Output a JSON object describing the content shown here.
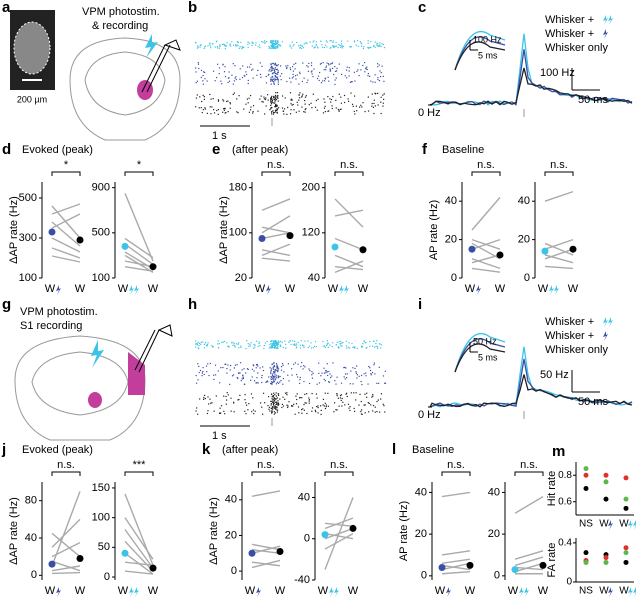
{
  "panels": {
    "a": {
      "label": "a",
      "title_lines": [
        "VPM photostim.",
        "& recording"
      ],
      "scale": "200 µm"
    },
    "b": {
      "label": "b",
      "scale": "1 s"
    },
    "c": {
      "label": "c",
      "legend": [
        "Whisker +",
        "Whisker +",
        "Whisker only"
      ],
      "inset_scale": [
        "100 Hz",
        "5 ms"
      ],
      "scale": [
        "100 Hz",
        "50 ms"
      ],
      "zero": "0 Hz"
    },
    "g": {
      "label": "g",
      "title_lines": [
        "VPM photostim.",
        "S1 recording"
      ]
    },
    "h": {
      "label": "h",
      "scale": "1 s"
    },
    "i": {
      "label": "i",
      "legend": [
        "Whisker +",
        "Whisker +",
        "Whisker only"
      ],
      "inset_scale": [
        "50 Hz",
        "5 ms"
      ],
      "scale": [
        "50 Hz",
        "50 ms"
      ],
      "zero": "0 Hz"
    }
  },
  "x_label": "W",
  "paired": [
    {
      "label": "d",
      "title": "Evoked (peak)",
      "ylabel": "ΔAP rate (Hz)",
      "plots": [
        {
          "sig": "*",
          "ylim": [
            100,
            580
          ],
          "yticks": [
            100,
            300,
            500
          ],
          "color": "#3a4ea6",
          "means": [
            330,
            290
          ],
          "cells": [
            [
              420,
              470
            ],
            [
              380,
              260
            ],
            [
              300,
              230
            ],
            [
              460,
              300
            ],
            [
              250,
              200
            ],
            [
              210,
              180
            ],
            [
              350,
              420
            ]
          ]
        },
        {
          "sig": "*",
          "ylim": [
            100,
            950
          ],
          "yticks": [
            100,
            500,
            900
          ],
          "color": "#3cc4e6",
          "means": [
            380,
            200
          ],
          "cells": [
            [
              850,
              250
            ],
            [
              450,
              280
            ],
            [
              400,
              220
            ],
            [
              330,
              180
            ],
            [
              300,
              150
            ],
            [
              250,
              200
            ],
            [
              200,
              160
            ]
          ]
        }
      ]
    },
    {
      "label": "e",
      "title": "(after peak)",
      "ylabel": "ΔAP rate (Hz)",
      "plots": [
        {
          "sig": "n.s.",
          "ylim": [
            20,
            190
          ],
          "yticks": [
            20,
            100,
            180
          ],
          "color": "#3a4ea6",
          "means": [
            90,
            95
          ],
          "cells": [
            [
              140,
              160
            ],
            [
              110,
              100
            ],
            [
              90,
              100
            ],
            [
              70,
              60
            ],
            [
              60,
              80
            ],
            [
              100,
              130
            ],
            [
              55,
              50
            ]
          ]
        },
        {
          "sig": "n.s.",
          "ylim": [
            40,
            210
          ],
          "yticks": [
            40,
            120,
            200
          ],
          "color": "#3cc4e6",
          "means": [
            95,
            90
          ],
          "cells": [
            [
              180,
              130
            ],
            [
              150,
              160
            ],
            [
              110,
              90
            ],
            [
              80,
              60
            ],
            [
              60,
              55
            ],
            [
              50,
              70
            ]
          ]
        }
      ]
    },
    {
      "label": "f",
      "title": "Baseline",
      "ylabel": "AP rate (Hz)",
      "plots": [
        {
          "sig": "n.s.",
          "ylim": [
            0,
            50
          ],
          "yticks": [
            0,
            20,
            40
          ],
          "color": "#3a4ea6",
          "means": [
            15,
            12
          ],
          "cells": [
            [
              25,
              42
            ],
            [
              18,
              10
            ],
            [
              15,
              20
            ],
            [
              10,
              5
            ],
            [
              8,
              12
            ],
            [
              5,
              3
            ],
            [
              20,
              15
            ]
          ]
        },
        {
          "sig": "n.s.",
          "ylim": [
            0,
            50
          ],
          "yticks": [
            0,
            20,
            40
          ],
          "color": "#3cc4e6",
          "means": [
            14,
            15
          ],
          "cells": [
            [
              40,
              45
            ],
            [
              15,
              20
            ],
            [
              12,
              8
            ],
            [
              10,
              15
            ],
            [
              6,
              5
            ],
            [
              18,
              12
            ]
          ]
        }
      ]
    },
    {
      "label": "j",
      "title": "Evoked (peak)",
      "ylabel": "ΔAP rate (Hz)",
      "plots": [
        {
          "sig": "n.s.",
          "ylim": [
            -5,
            100
          ],
          "yticks": [
            0,
            40,
            80
          ],
          "color": "#3a4ea6",
          "means": [
            12,
            18
          ],
          "cells": [
            [
              10,
              90
            ],
            [
              30,
              60
            ],
            [
              45,
              20
            ],
            [
              15,
              5
            ],
            [
              5,
              10
            ],
            [
              2,
              3
            ],
            [
              20,
              35
            ]
          ]
        },
        {
          "sig": "***",
          "ylim": [
            -5,
            160
          ],
          "yticks": [
            0,
            50,
            100,
            150
          ],
          "color": "#3cc4e6",
          "means": [
            40,
            15
          ],
          "cells": [
            [
              140,
              20
            ],
            [
              100,
              30
            ],
            [
              80,
              15
            ],
            [
              60,
              10
            ],
            [
              40,
              5
            ],
            [
              25,
              20
            ],
            [
              10,
              5
            ]
          ]
        }
      ]
    },
    {
      "label": "k",
      "title": "(after peak)",
      "ylabel": "ΔAP rate (Hz)",
      "plots": [
        {
          "sig": "n.s.",
          "ylim": [
            -5,
            50
          ],
          "yticks": [
            0,
            20,
            40
          ],
          "color": "#3a4ea6",
          "means": [
            10,
            11
          ],
          "cells": [
            [
              42,
              45
            ],
            [
              15,
              12
            ],
            [
              10,
              14
            ],
            [
              5,
              3
            ],
            [
              2,
              6
            ],
            [
              12,
              10
            ]
          ]
        },
        {
          "sig": "n.s.",
          "ylim": [
            -40,
            55
          ],
          "yticks": [
            -40,
            0,
            40
          ],
          "color": "#3cc4e6",
          "means": [
            4,
            10
          ],
          "cells": [
            [
              -30,
              40
            ],
            [
              10,
              20
            ],
            [
              5,
              0
            ],
            [
              0,
              10
            ],
            [
              15,
              12
            ],
            [
              -10,
              5
            ]
          ]
        }
      ]
    },
    {
      "label": "l",
      "title": "Baseline",
      "ylabel": "AP rate (Hz)",
      "plots": [
        {
          "sig": "n.s.",
          "ylim": [
            -2,
            45
          ],
          "yticks": [
            0,
            20,
            40
          ],
          "color": "#3a4ea6",
          "means": [
            4,
            5
          ],
          "cells": [
            [
              38,
              40
            ],
            [
              10,
              12
            ],
            [
              5,
              3
            ],
            [
              3,
              6
            ],
            [
              1,
              2
            ],
            [
              6,
              8
            ]
          ]
        },
        {
          "sig": "n.s.",
          "ylim": [
            -2,
            45
          ],
          "yticks": [
            0,
            20,
            40
          ],
          "color": "#3cc4e6",
          "means": [
            3,
            5
          ],
          "cells": [
            [
              30,
              38
            ],
            [
              8,
              12
            ],
            [
              4,
              3
            ],
            [
              2,
              6
            ],
            [
              1,
              1
            ],
            [
              5,
              9
            ]
          ]
        }
      ]
    }
  ],
  "m": {
    "label": "m",
    "xlabels": [
      "NS",
      "W",
      "W"
    ],
    "plots": [
      {
        "ylabel": "Hit rate",
        "ylim": [
          0.5,
          0.9
        ],
        "yticks": [
          0.6,
          0.8
        ],
        "series": [
          {
            "color": "#000000",
            "values": [
              0.7,
              0.62,
              0.55
            ]
          },
          {
            "color": "#e0302a",
            "values": [
              0.8,
              0.8,
              0.78
            ]
          },
          {
            "color": "#5cb84a",
            "values": [
              0.85,
              0.75,
              0.62
            ]
          }
        ]
      },
      {
        "ylabel": "FA rate",
        "ylim": [
          0,
          0.45
        ],
        "yticks": [
          0,
          0.4
        ],
        "series": [
          {
            "color": "#000000",
            "values": [
              0.3,
              0.28,
              0.2
            ]
          },
          {
            "color": "#e0302a",
            "values": [
              0.22,
              0.25,
              0.35
            ]
          },
          {
            "color": "#5cb84a",
            "values": [
              0.2,
              0.2,
              0.3
            ]
          }
        ]
      }
    ]
  }
}
